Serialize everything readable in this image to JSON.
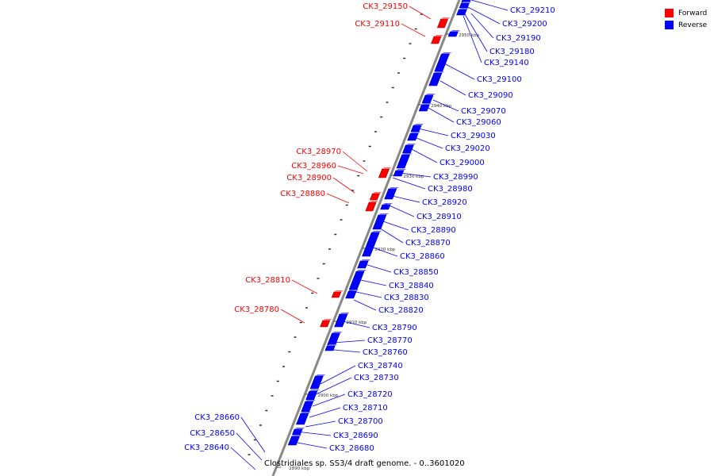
{
  "legend": {
    "forward_label": "Forward",
    "reverse_label": "Reverse",
    "forward_color": "#ff0000",
    "reverse_color": "#0000ff"
  },
  "caption": "Clostridiales sp. SS3/4 draft genome. - 0..3601020",
  "scale_ticks": [
    "2950 kbp",
    "2940 kbp",
    "2930 kbp",
    "2920 kbp",
    "2910 kbp",
    "2900 kbp",
    "2890 kbp"
  ],
  "forward_genes": [
    "CK3_29150",
    "CK3_29110",
    "CK3_28970",
    "CK3_28960",
    "CK3_28900",
    "CK3_28880",
    "CK3_28810",
    "CK3_28780"
  ],
  "reverse_genes": [
    "CK3_29210",
    "CK3_29200",
    "CK3_29190",
    "CK3_29180",
    "CK3_29140",
    "CK3_29100",
    "CK3_29090",
    "CK3_29070",
    "CK3_29060",
    "CK3_29030",
    "CK3_29020",
    "CK3_29000",
    "CK3_28990",
    "CK3_28980",
    "CK3_28920",
    "CK3_28910",
    "CK3_28890",
    "CK3_28870",
    "CK3_28860",
    "CK3_28850",
    "CK3_28840",
    "CK3_28830",
    "CK3_28820",
    "CK3_28790",
    "CK3_28770",
    "CK3_28760",
    "CK3_28740",
    "CK3_28730",
    "CK3_28720",
    "CK3_28710",
    "CK3_28700",
    "CK3_28690",
    "CK3_28680",
    "CK3_28660",
    "CK3_28650",
    "CK3_28640"
  ]
}
